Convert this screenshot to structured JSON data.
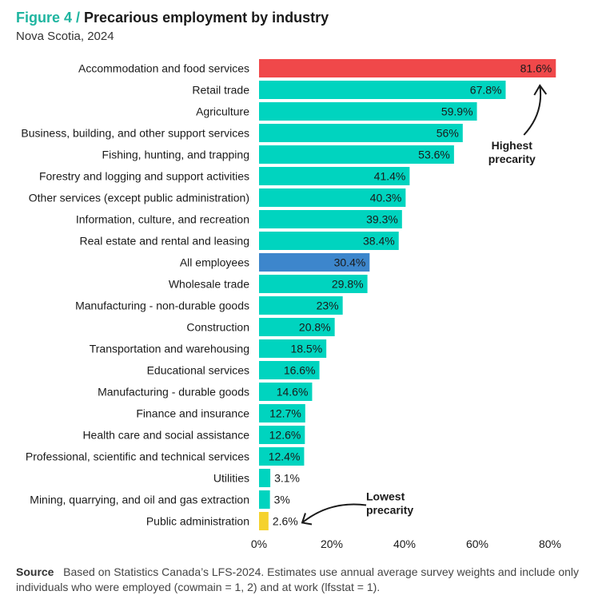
{
  "header": {
    "figure_label": "Figure 4 /",
    "title": "Precarious employment by industry",
    "subtitle": "Nova Scotia, 2024"
  },
  "footer": {
    "source_label": "Source",
    "source_text": "Based on Statistics Canada’s LFS-2024. Estimates use annual average survey weights and include only individuals who were employed (cowmain = 1, 2) and at work (lfsstat = 1)."
  },
  "colors": {
    "default": "#00d4bf",
    "highest": "#f0484a",
    "all_employees": "#3d86cc",
    "lowest": "#f5d22e",
    "accent": "#1fb5a0"
  },
  "chart_data": {
    "type": "bar",
    "orientation": "horizontal",
    "title": "Precarious employment by industry",
    "subtitle": "Nova Scotia, 2024",
    "xlabel": "",
    "ylabel": "",
    "xlim": [
      0,
      80
    ],
    "x_ticks": [
      0,
      20,
      40,
      60,
      80
    ],
    "x_tick_labels": [
      "0%",
      "20%",
      "40%",
      "60%",
      "80%"
    ],
    "grid": false,
    "categories": [
      "Accommodation and food services",
      "Retail trade",
      "Agriculture",
      "Business, building, and other support services",
      "Fishing, hunting, and trapping",
      "Forestry and logging and support activities",
      "Other services (except public administration)",
      "Information, culture, and recreation",
      "Real estate and rental and leasing",
      "All employees",
      "Wholesale trade",
      "Manufacturing - non-durable goods",
      "Construction",
      "Transportation and warehousing",
      "Educational services",
      "Manufacturing - durable goods",
      "Finance and insurance",
      "Health care and social assistance",
      "Professional, scientific and technical services",
      "Utilities",
      "Mining, quarrying, and oil and gas extraction",
      "Public administration"
    ],
    "values": [
      81.6,
      67.8,
      59.9,
      56,
      53.6,
      41.4,
      40.3,
      39.3,
      38.4,
      30.4,
      29.8,
      23,
      20.8,
      18.5,
      16.6,
      14.6,
      12.7,
      12.6,
      12.4,
      3.1,
      3,
      2.6
    ],
    "value_labels": [
      "81.6%",
      "67.8%",
      "59.9%",
      "56%",
      "53.6%",
      "41.4%",
      "40.3%",
      "39.3%",
      "38.4%",
      "30.4%",
      "29.8%",
      "23%",
      "20.8%",
      "18.5%",
      "16.6%",
      "14.6%",
      "12.7%",
      "12.6%",
      "12.4%",
      "3.1%",
      "3%",
      "2.6%"
    ],
    "highlights": {
      "Accommodation and food services": "highest",
      "All employees": "all_employees",
      "Public administration": "lowest"
    },
    "annotations": [
      {
        "text_lines": [
          "Highest",
          "precarity"
        ],
        "target": "Accommodation and food services"
      },
      {
        "text_lines": [
          "Lowest",
          "precarity"
        ],
        "target": "Public administration"
      }
    ]
  }
}
